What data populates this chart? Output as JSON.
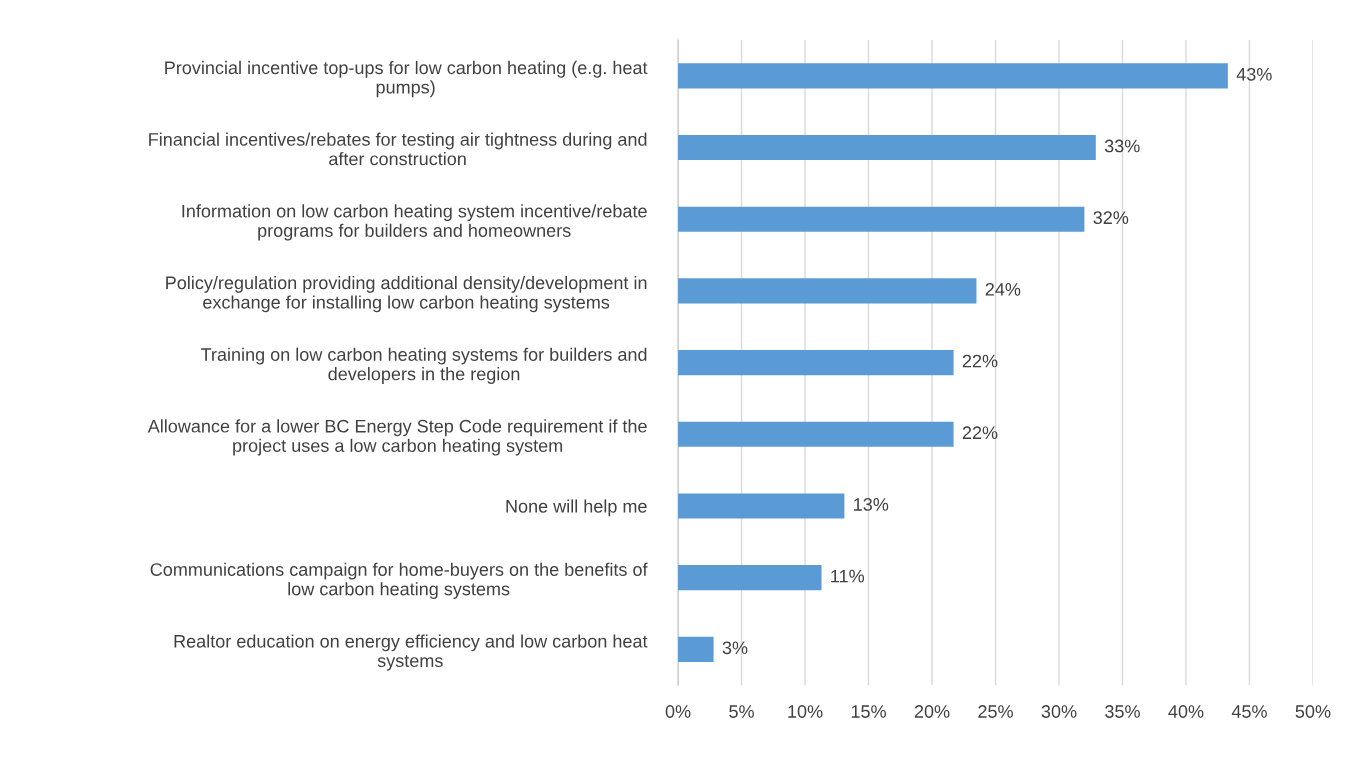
{
  "chart_data": {
    "type": "bar",
    "orientation": "horizontal",
    "categories": [
      "Provincial incentive top-ups for low carbon heating (e.g. heat\npumps)",
      "Financial incentives/rebates for testing air tightness during and\nafter construction",
      "Information on low carbon heating system incentive/rebate\nprograms for builders and homeowners",
      "Policy/regulation providing additional density/development in\nexchange for installing low carbon heating systems",
      "Training on low carbon heating systems for builders and\ndevelopers in the region",
      "Allowance for a lower BC Energy Step Code requirement if the\nproject uses a low carbon heating system",
      "None will help me",
      "Communications campaign for home-buyers on the benefits of\nlow carbon heating systems",
      "Realtor education on energy efficiency and low carbon heat\nsystems"
    ],
    "values": [
      43.3,
      32.9,
      32.0,
      23.5,
      21.7,
      21.7,
      13.1,
      11.3,
      2.8
    ],
    "value_labels": [
      "43%",
      "33%",
      "32%",
      "24%",
      "22%",
      "22%",
      "13%",
      "11%",
      "3%"
    ],
    "color": "#5b9bd5",
    "xlim": [
      0,
      50
    ],
    "xticks": [
      {
        "value": 0,
        "label": "0%"
      },
      {
        "value": 5,
        "label": "5%"
      },
      {
        "value": 10,
        "label": "10%"
      },
      {
        "value": 15,
        "label": "15%"
      },
      {
        "value": 20,
        "label": "20%"
      },
      {
        "value": 25,
        "label": "25%"
      },
      {
        "value": 30,
        "label": "30%"
      },
      {
        "value": 35,
        "label": "35%"
      },
      {
        "value": 40,
        "label": "40%"
      },
      {
        "value": 45,
        "label": "45%"
      },
      {
        "value": 50,
        "label": "50%"
      }
    ],
    "grid": "x"
  }
}
